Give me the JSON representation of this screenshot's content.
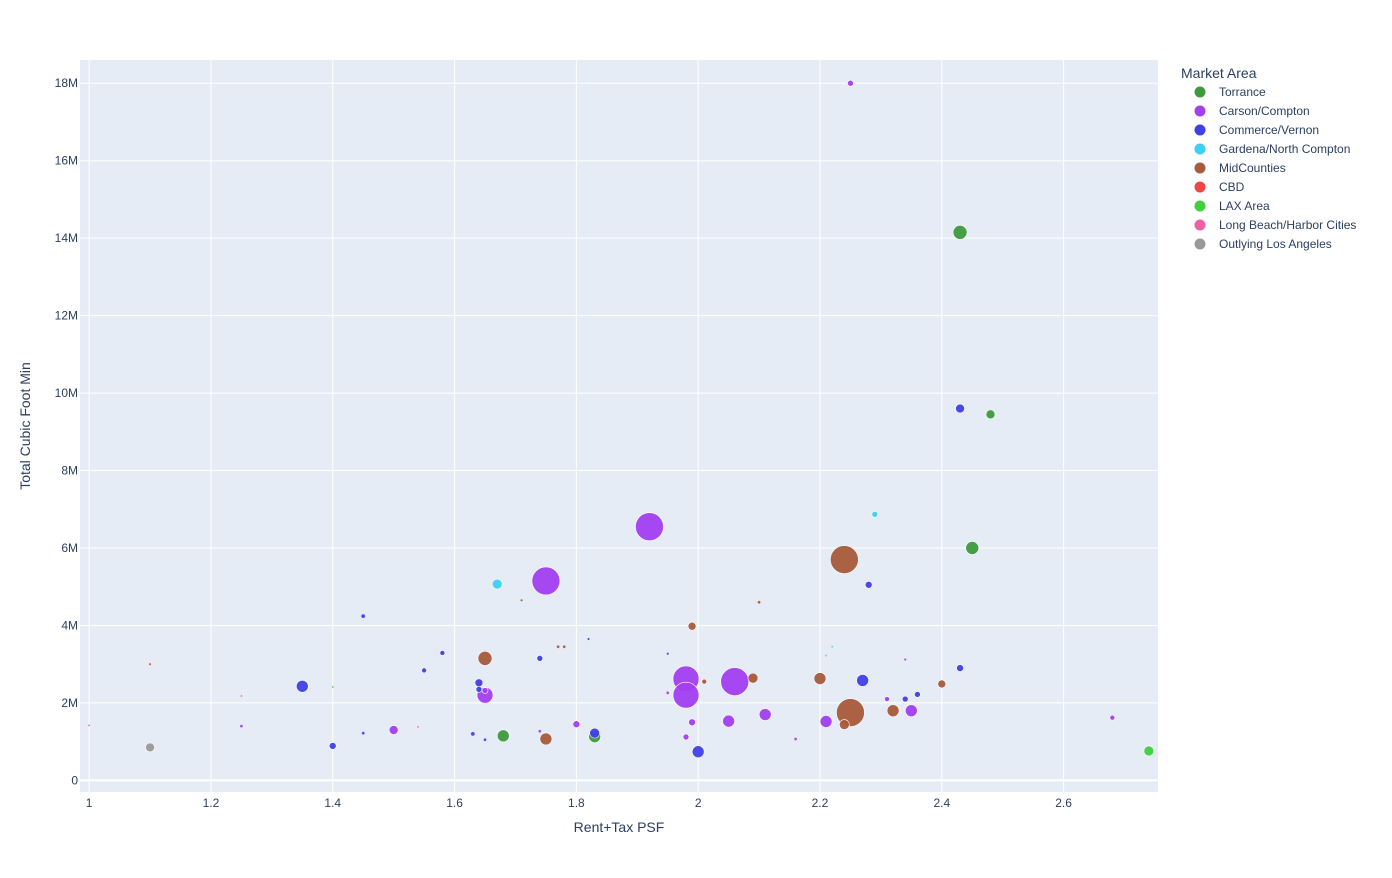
{
  "chart_data": {
    "type": "scatter",
    "xlabel": "Rent+Tax PSF",
    "ylabel": "Total Cubic Foot Min",
    "xlim": [
      0.985,
      2.755
    ],
    "ylim": [
      -300000,
      18600000
    ],
    "xticks": [
      1,
      1.2,
      1.4,
      1.6,
      1.8,
      2,
      2.2,
      2.4,
      2.6
    ],
    "xtick_labels": [
      "1",
      "1.2",
      "1.4",
      "1.6",
      "1.8",
      "2",
      "2.2",
      "2.4",
      "2.6"
    ],
    "yticks": [
      0,
      2000000,
      4000000,
      6000000,
      8000000,
      10000000,
      12000000,
      14000000,
      16000000,
      18000000
    ],
    "ytick_labels": [
      "0",
      "2M",
      "4M",
      "6M",
      "8M",
      "10M",
      "12M",
      "14M",
      "16M",
      "18M"
    ],
    "grid": true,
    "background_color": "#E5ECF6",
    "legend": {
      "title": "Market Area",
      "placement": "top-right outside"
    },
    "series": [
      {
        "name": "Torrance",
        "color": "#3D9A3D",
        "points": [
          {
            "x": 2.43,
            "y": 14150000,
            "s": 7
          },
          {
            "x": 2.48,
            "y": 9450000,
            "s": 4.5
          },
          {
            "x": 2.45,
            "y": 6000000,
            "s": 6.5
          },
          {
            "x": 1.68,
            "y": 1150000,
            "s": 6
          },
          {
            "x": 1.83,
            "y": 1130000,
            "s": 6
          }
        ]
      },
      {
        "name": "Carson/Compton",
        "color": "#A23FF0",
        "points": [
          {
            "x": 2.25,
            "y": 18000000,
            "s": 3
          },
          {
            "x": 1.92,
            "y": 6550000,
            "s": 14
          },
          {
            "x": 1.75,
            "y": 5150000,
            "s": 14
          },
          {
            "x": 1.98,
            "y": 2620000,
            "s": 13
          },
          {
            "x": 1.98,
            "y": 2200000,
            "s": 13
          },
          {
            "x": 2.06,
            "y": 2550000,
            "s": 14
          },
          {
            "x": 1.65,
            "y": 2200000,
            "s": 8
          },
          {
            "x": 1.65,
            "y": 2320000,
            "s": 3
          },
          {
            "x": 2.11,
            "y": 1700000,
            "s": 6
          },
          {
            "x": 2.05,
            "y": 1530000,
            "s": 6
          },
          {
            "x": 2.21,
            "y": 1520000,
            "s": 6
          },
          {
            "x": 2.35,
            "y": 1800000,
            "s": 6
          },
          {
            "x": 2.31,
            "y": 2100000,
            "s": 2.5
          },
          {
            "x": 1.99,
            "y": 1500000,
            "s": 3.5
          },
          {
            "x": 1.8,
            "y": 1450000,
            "s": 3.5
          },
          {
            "x": 1.5,
            "y": 1300000,
            "s": 4.5
          },
          {
            "x": 1.98,
            "y": 1120000,
            "s": 3
          },
          {
            "x": 2.68,
            "y": 1620000,
            "s": 2.5
          },
          {
            "x": 1.25,
            "y": 1400000,
            "s": 1.5
          },
          {
            "x": 1.74,
            "y": 1270000,
            "s": 1.5
          },
          {
            "x": 2.16,
            "y": 1070000,
            "s": 1.5
          },
          {
            "x": 2.34,
            "y": 3120000,
            "s": 1.2
          },
          {
            "x": 1.95,
            "y": 2260000,
            "s": 1.5
          }
        ]
      },
      {
        "name": "Commerce/Vernon",
        "color": "#4040E8",
        "points": [
          {
            "x": 2.43,
            "y": 9600000,
            "s": 4.5
          },
          {
            "x": 2.28,
            "y": 5050000,
            "s": 3.5
          },
          {
            "x": 1.35,
            "y": 2430000,
            "s": 6
          },
          {
            "x": 2.27,
            "y": 2580000,
            "s": 6
          },
          {
            "x": 2.43,
            "y": 2900000,
            "s": 3.5
          },
          {
            "x": 2.36,
            "y": 2220000,
            "s": 3
          },
          {
            "x": 2.34,
            "y": 2100000,
            "s": 3
          },
          {
            "x": 1.64,
            "y": 2520000,
            "s": 4
          },
          {
            "x": 1.64,
            "y": 2350000,
            "s": 3
          },
          {
            "x": 1.74,
            "y": 3150000,
            "s": 3
          },
          {
            "x": 1.58,
            "y": 3290000,
            "s": 2.5
          },
          {
            "x": 1.55,
            "y": 2840000,
            "s": 2.5
          },
          {
            "x": 1.45,
            "y": 4240000,
            "s": 2
          },
          {
            "x": 1.4,
            "y": 890000,
            "s": 3.5
          },
          {
            "x": 1.83,
            "y": 1220000,
            "s": 5
          },
          {
            "x": 2.0,
            "y": 740000,
            "s": 6
          },
          {
            "x": 1.63,
            "y": 1200000,
            "s": 2
          },
          {
            "x": 1.65,
            "y": 1050000,
            "s": 1.5
          },
          {
            "x": 1.45,
            "y": 1220000,
            "s": 1.5
          },
          {
            "x": 1.82,
            "y": 3650000,
            "s": 1.2
          },
          {
            "x": 1.95,
            "y": 3270000,
            "s": 1.2
          }
        ]
      },
      {
        "name": "Gardena/North Compton",
        "color": "#3FCFF2",
        "points": [
          {
            "x": 1.67,
            "y": 5070000,
            "s": 5
          },
          {
            "x": 2.29,
            "y": 6870000,
            "s": 3
          },
          {
            "x": 2.21,
            "y": 3220000,
            "s": 1
          },
          {
            "x": 2.22,
            "y": 3450000,
            "s": 1
          }
        ]
      },
      {
        "name": "MidCounties",
        "color": "#A85A3A",
        "points": [
          {
            "x": 2.24,
            "y": 5700000,
            "s": 14
          },
          {
            "x": 2.25,
            "y": 1750000,
            "s": 14
          },
          {
            "x": 1.65,
            "y": 3150000,
            "s": 7
          },
          {
            "x": 1.99,
            "y": 3980000,
            "s": 4
          },
          {
            "x": 2.09,
            "y": 2640000,
            "s": 5
          },
          {
            "x": 2.2,
            "y": 2630000,
            "s": 6
          },
          {
            "x": 2.32,
            "y": 1800000,
            "s": 6
          },
          {
            "x": 2.4,
            "y": 2490000,
            "s": 4
          },
          {
            "x": 2.24,
            "y": 1440000,
            "s": 5
          },
          {
            "x": 1.75,
            "y": 1070000,
            "s": 6
          },
          {
            "x": 2.01,
            "y": 2550000,
            "s": 2.5
          },
          {
            "x": 1.71,
            "y": 4650000,
            "s": 1.2
          },
          {
            "x": 2.1,
            "y": 4600000,
            "s": 1.5
          },
          {
            "x": 1.77,
            "y": 3450000,
            "s": 1.5
          },
          {
            "x": 1.78,
            "y": 3450000,
            "s": 1.5
          }
        ]
      },
      {
        "name": "CBD",
        "color": "#EF4545",
        "points": [
          {
            "x": 1.1,
            "y": 3000000,
            "s": 1.2
          }
        ]
      },
      {
        "name": "LAX Area",
        "color": "#3FCF3F",
        "points": [
          {
            "x": 2.74,
            "y": 760000,
            "s": 5
          },
          {
            "x": 1.4,
            "y": 2410000,
            "s": 1
          }
        ]
      },
      {
        "name": "Long Beach/Harbor Cities",
        "color": "#F060A8",
        "points": [
          {
            "x": 1.25,
            "y": 2180000,
            "s": 1
          },
          {
            "x": 1.54,
            "y": 1380000,
            "s": 1
          },
          {
            "x": 1.0,
            "y": 1420000,
            "s": 1
          }
        ]
      },
      {
        "name": "Outlying Los Angeles",
        "color": "#999999",
        "points": [
          {
            "x": 1.1,
            "y": 850000,
            "s": 4.5
          }
        ]
      }
    ]
  }
}
